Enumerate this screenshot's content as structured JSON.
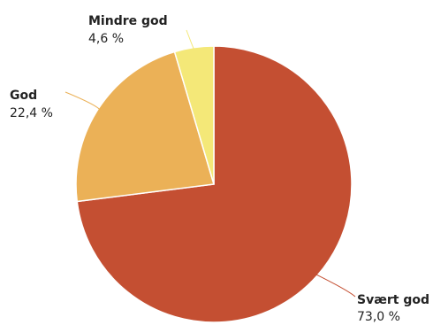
{
  "chart_data": {
    "type": "pie",
    "title": "",
    "slices": [
      {
        "label": "Svært god",
        "value": 73.0,
        "value_label": "73,0 %",
        "color": "#c44f32"
      },
      {
        "label": "God",
        "value": 22.4,
        "value_label": "22,4 %",
        "color": "#ebb157"
      },
      {
        "label": "Mindre god",
        "value": 4.6,
        "value_label": "4,6 %",
        "color": "#f4e878"
      }
    ],
    "start_angle_deg": 0,
    "direction": "clockwise",
    "legend": "none",
    "labels": "outside-with-leader-lines"
  }
}
